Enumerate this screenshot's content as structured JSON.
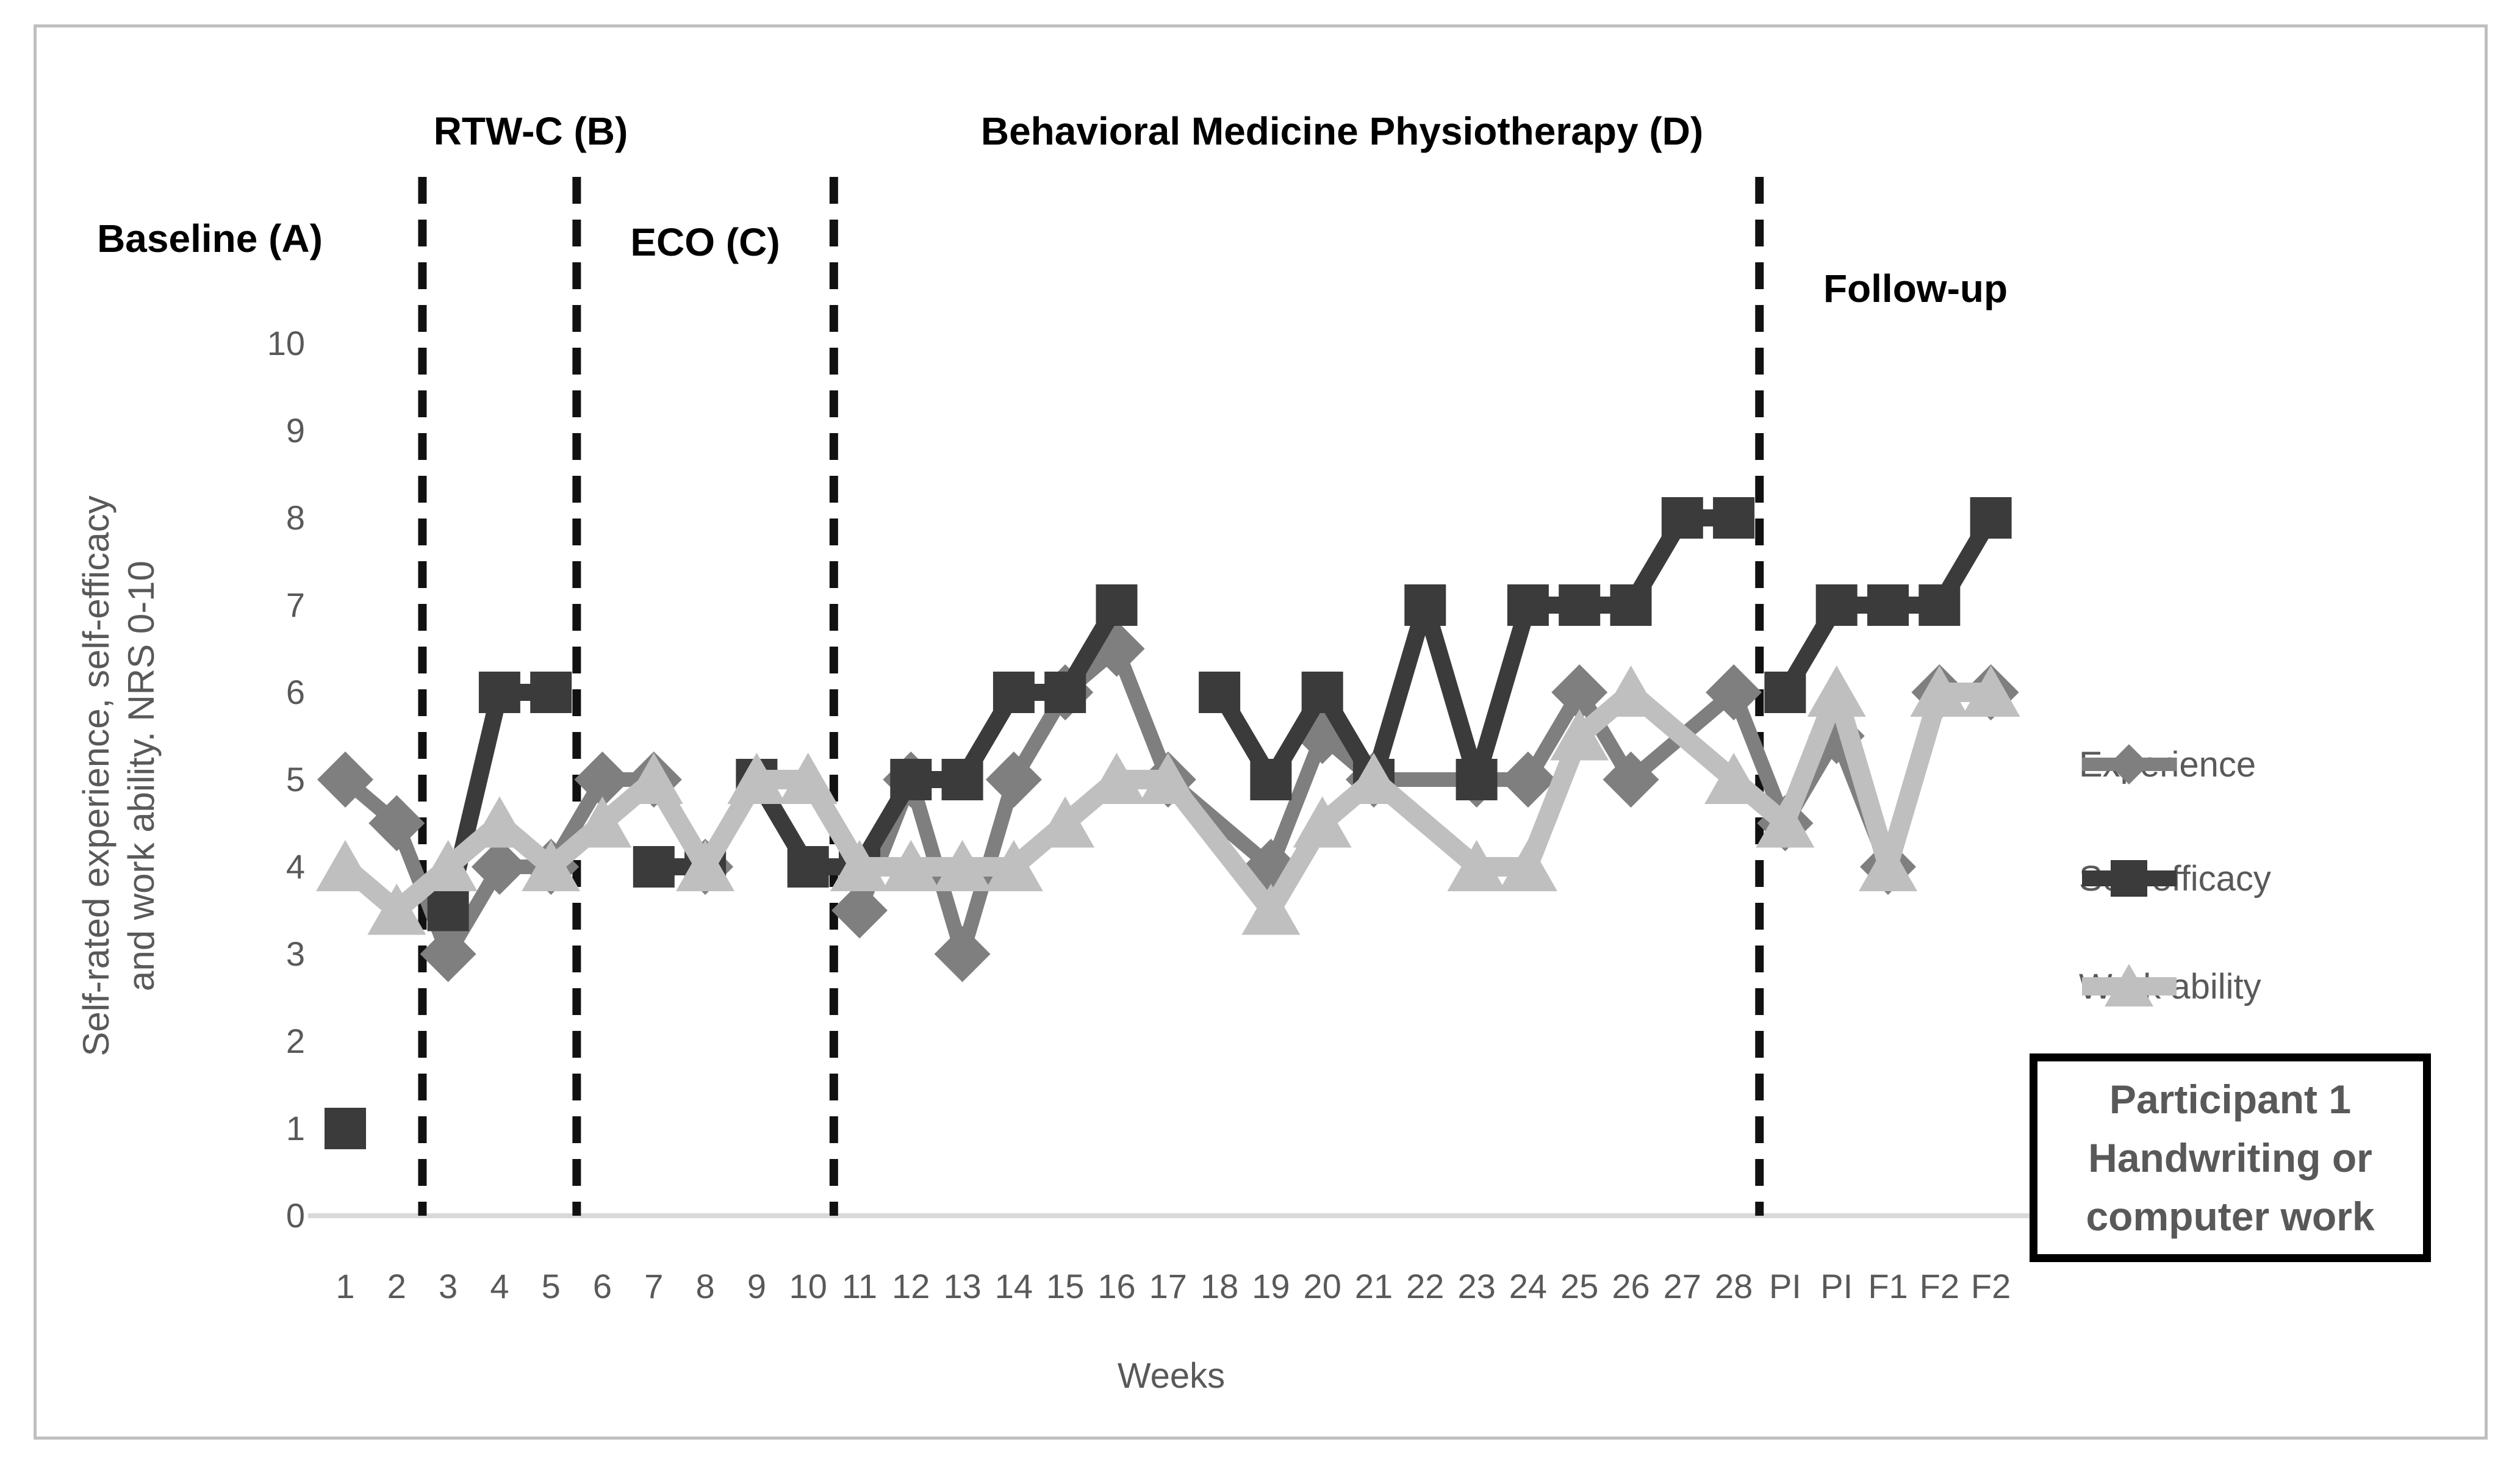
{
  "figure": {
    "phase_labels": {
      "baseline": "Baseline (A)",
      "rtwc": "RTW-C (B)",
      "eco": "ECO (C)",
      "bmp": "Behavioral Medicine Physiotherapy (D)",
      "followup": "Follow-up"
    },
    "y_axis_title_line1": "Self-rated experience, self-efficacy",
    "y_axis_title_line2": "and work ability. NRS 0-10",
    "x_axis_title": "Weeks",
    "annotation_box": {
      "line1": "Participant 1",
      "line2": "Handwriting or",
      "line3": "computer work"
    }
  },
  "colors": {
    "experience": "#7f7f7f",
    "self_efficacy": "#3b3b3b",
    "work_ability": "#bfbfbf",
    "axis_text": "#595959",
    "axis_line": "#d9d9d9",
    "phase_divider": "#111111",
    "figure_border": "#bfbfbf"
  },
  "chart_data": {
    "type": "line",
    "title": "",
    "xlabel": "Weeks",
    "ylabel": "Self-rated experience, self-efficacy and work ability. NRS 0-10",
    "ylim": [
      0,
      10
    ],
    "y_ticks": [
      0,
      1,
      2,
      3,
      4,
      5,
      6,
      7,
      8,
      9,
      10
    ],
    "grid": false,
    "legend_position": "right",
    "categories": [
      "1",
      "2",
      "3",
      "4",
      "5",
      "6",
      "7",
      "8",
      "9",
      "10",
      "11",
      "12",
      "13",
      "14",
      "15",
      "16",
      "17",
      "18",
      "19",
      "20",
      "21",
      "22",
      "23",
      "24",
      "25",
      "26",
      "27",
      "28",
      "PI",
      "PI",
      "F1",
      "F2",
      "F2"
    ],
    "phase_boundaries_after_category_index": [
      1,
      4,
      9,
      27
    ],
    "series": [
      {
        "name": "Experience",
        "marker": "diamond",
        "color": "#7f7f7f",
        "line_width": 24,
        "span_gaps": true,
        "breaks_after_index": [
          7
        ],
        "values": [
          5,
          4.5,
          3,
          4,
          4,
          5,
          5,
          4,
          null,
          null,
          3.5,
          5,
          3,
          5,
          6,
          6.5,
          5,
          null,
          4,
          5.5,
          5,
          null,
          5,
          5,
          6,
          5,
          null,
          6,
          4.5,
          5.5,
          4,
          6,
          6
        ]
      },
      {
        "name": "Self-efficacy",
        "marker": "square",
        "color": "#3b3b3b",
        "line_width": 28,
        "span_gaps": false,
        "breaks_after_index": [
          27
        ],
        "values": [
          1,
          null,
          3.5,
          6,
          6,
          null,
          4,
          4,
          5,
          4,
          4,
          5,
          5,
          6,
          6,
          7,
          null,
          6,
          5,
          6,
          5,
          7,
          5,
          7,
          7,
          7,
          8,
          8,
          6,
          7,
          7,
          7,
          8
        ]
      },
      {
        "name": "Work ability",
        "marker": "triangle",
        "color": "#bfbfbf",
        "line_width": 32,
        "span_gaps": true,
        "breaks_after_index": [],
        "values": [
          4,
          3.5,
          4,
          4.5,
          4,
          4.5,
          5,
          4,
          5,
          5,
          4,
          4,
          4,
          4,
          4.5,
          5,
          5,
          null,
          3.5,
          4.5,
          5,
          null,
          4,
          4,
          5.5,
          6,
          null,
          5,
          4.5,
          6,
          4,
          6,
          6
        ]
      }
    ]
  }
}
